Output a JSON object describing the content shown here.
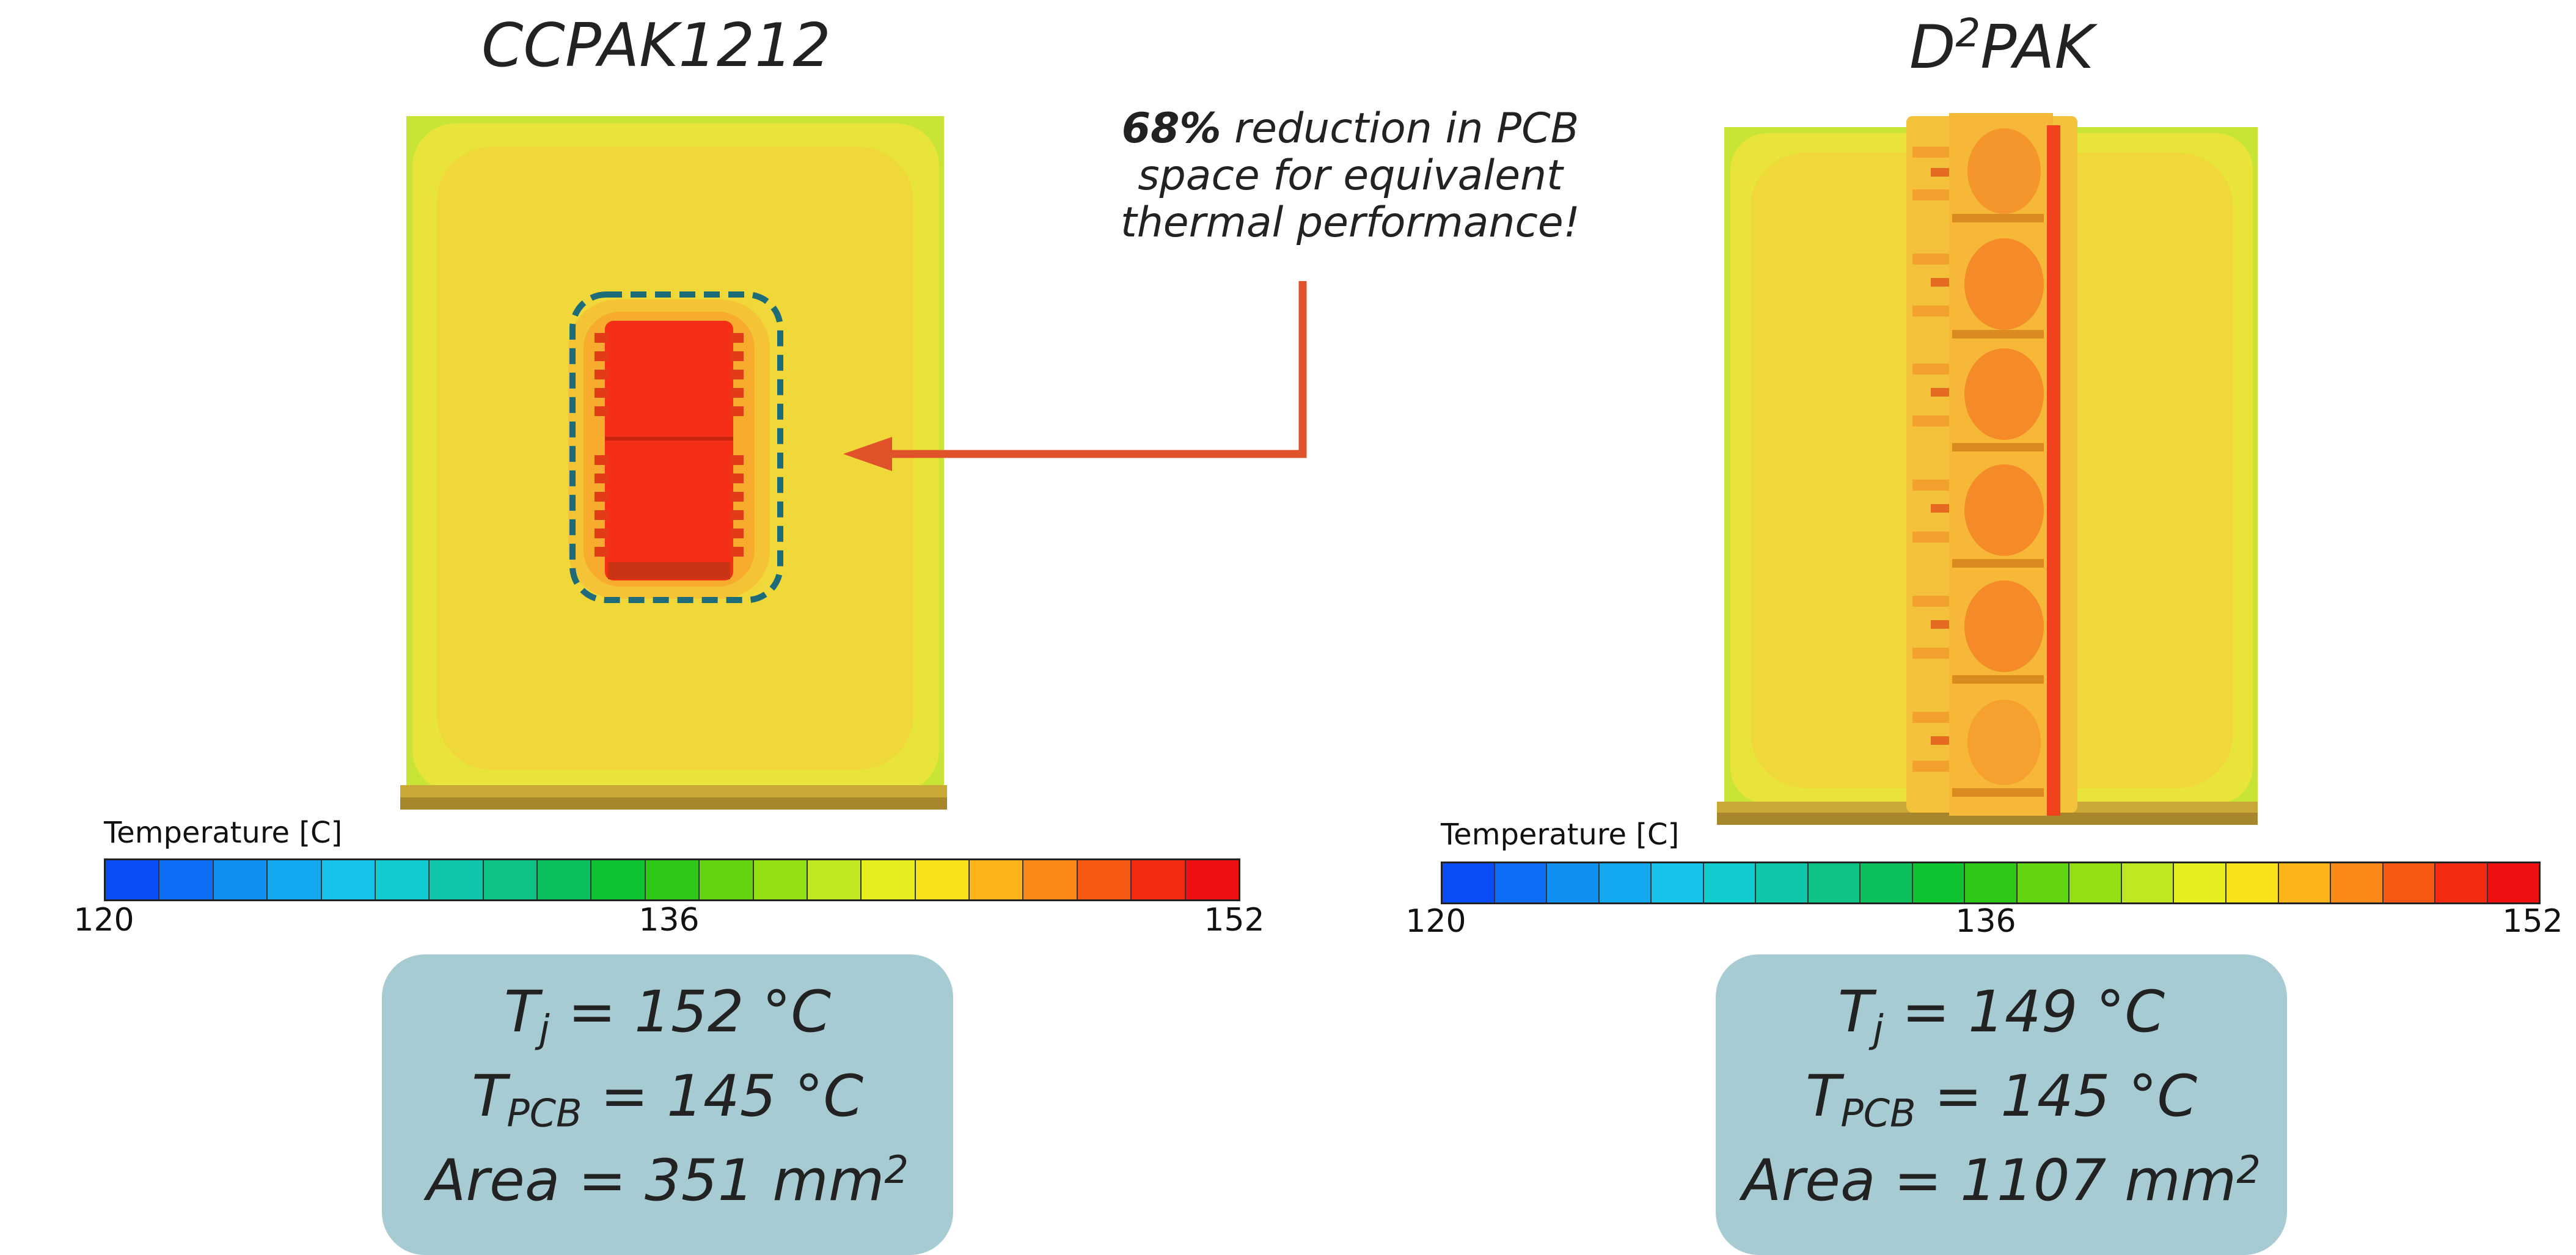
{
  "left": {
    "title": "CCPAK1212",
    "colorbar": {
      "label": "Temperature [C]",
      "min": "120",
      "mid": "136",
      "max": "152"
    },
    "results": {
      "tj_value": "= 152 °C",
      "tpcb_value": "= 145 °C",
      "area_value": "Area = 351 mm"
    }
  },
  "right": {
    "title_prefix": "D",
    "title_sup": "2",
    "title_suffix": "PAK",
    "colorbar": {
      "label": "Temperature [C]",
      "min": "120",
      "mid": "136",
      "max": "152"
    },
    "results": {
      "tj_value": "= 149 °C",
      "tpcb_value": "= 145 °C",
      "area_value": "Area = 1107 mm"
    }
  },
  "symbols": {
    "t": "T",
    "j": "j",
    "pcb": "PCB",
    "squared": "2"
  },
  "callout": {
    "bold": "68%",
    "line1_rest": " reduction in PCB",
    "line2": "space for equivalent",
    "line3": "thermal performance!"
  },
  "colorbar_colors": [
    "#0a4cf5",
    "#0d6df4",
    "#1090f2",
    "#14a8f0",
    "#16c3ea",
    "#10cccf",
    "#0dc7a8",
    "#0cc383",
    "#0bbf5c",
    "#10c330",
    "#30c818",
    "#62d412",
    "#92e014",
    "#bfe820",
    "#e6ee1e",
    "#f7e21a",
    "#fbb41a",
    "#fa8a18",
    "#f85814",
    "#f42a12",
    "#ee1010"
  ],
  "heat_colors": {
    "pcb_left": "#eddc3b",
    "pcb_right": "#ede03e",
    "hot": "#f42a14",
    "warm": "#f58a2a",
    "edge": "#c8e436"
  },
  "arrow_color": "#e0532a",
  "outline_color": "#1e6b7a"
}
